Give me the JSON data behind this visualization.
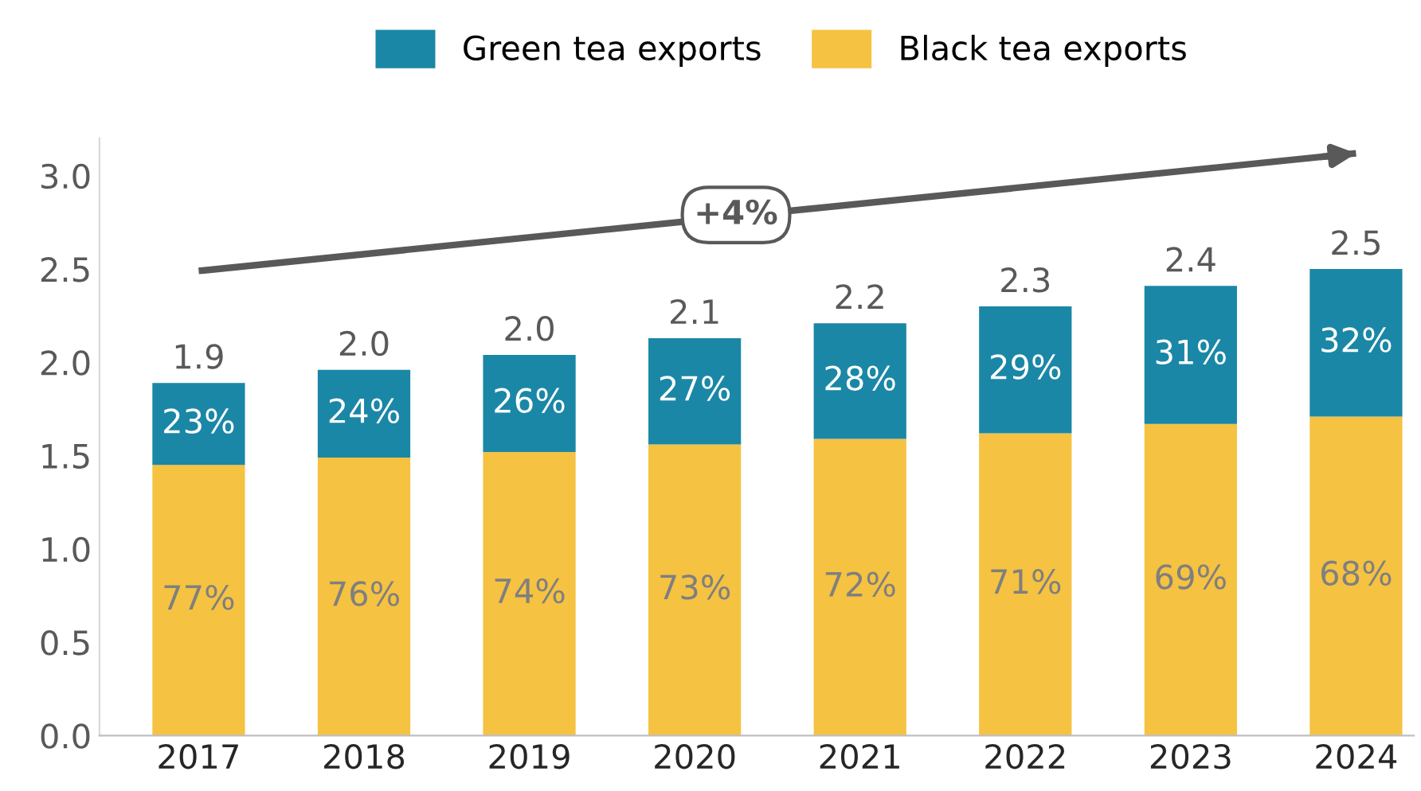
{
  "chart_data": {
    "type": "bar",
    "stacked": true,
    "legend": "top",
    "categories": [
      "2017",
      "2018",
      "2019",
      "2020",
      "2021",
      "2022",
      "2023",
      "2024"
    ],
    "series": [
      {
        "name": "Black tea exports",
        "color": "#f5c242",
        "values": [
          1.45,
          1.49,
          1.52,
          1.56,
          1.59,
          1.62,
          1.67,
          1.71
        ]
      },
      {
        "name": "Green tea exports",
        "color": "#1b87a6",
        "values": [
          0.44,
          0.47,
          0.52,
          0.57,
          0.62,
          0.68,
          0.74,
          0.79
        ]
      },
      {
        "type": "line",
        "color": "#595959",
        "values": [
          2.49,
          null,
          null,
          null,
          null,
          null,
          null,
          3.12
        ]
      }
    ],
    "totals": [
      "1.9",
      "2.0",
      "2.0",
      "2.1",
      "2.2",
      "2.3",
      "2.4",
      "2.5"
    ],
    "annotations": [
      "+4%",
      "77%",
      "76%",
      "74%",
      "73%",
      "72%",
      "71%",
      "69%",
      "68%",
      "23%",
      "24%",
      "26%",
      "27%",
      "28%",
      "29%",
      "31%",
      "32%"
    ],
    "ylim": [
      0,
      3.2
    ],
    "yticks": [
      {
        "value": 0,
        "label": "0.0"
      },
      {
        "value": 0.5,
        "label": "0.5"
      },
      {
        "value": 1,
        "label": "1.0"
      },
      {
        "value": 1.5,
        "label": "1.5"
      },
      {
        "value": 2,
        "label": "2.0"
      },
      {
        "value": 2.5,
        "label": "2.5"
      },
      {
        "value": 3,
        "label": "3.0"
      }
    ],
    "grid": false
  }
}
